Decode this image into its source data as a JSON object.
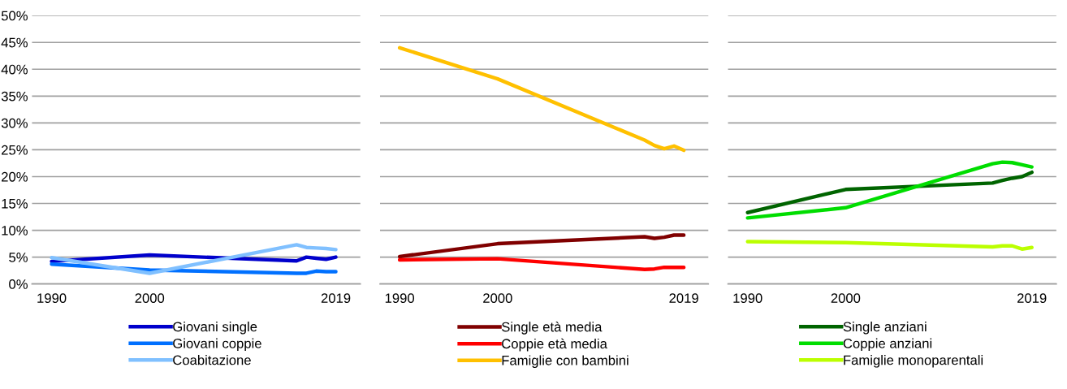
{
  "chart_data": [
    {
      "type": "line",
      "x": [
        1990,
        2000,
        2015,
        2016,
        2017,
        2018,
        2019
      ],
      "xlim": [
        1988,
        2021.5
      ],
      "xticks": [
        1990,
        2000,
        2019
      ],
      "ylim": [
        0,
        50
      ],
      "yticks": [
        {
          "value": 0,
          "label": "0%"
        },
        {
          "value": 5,
          "label": "5%"
        },
        {
          "value": 10,
          "label": "10%"
        },
        {
          "value": 15,
          "label": "15%"
        },
        {
          "value": 20,
          "label": "20%"
        },
        {
          "value": 25,
          "label": "25%"
        },
        {
          "value": 30,
          "label": "30%"
        },
        {
          "value": 35,
          "label": "35%"
        },
        {
          "value": 40,
          "label": "40%"
        },
        {
          "value": 45,
          "label": "45%"
        },
        {
          "value": 50,
          "label": "50%"
        }
      ],
      "grid": "y",
      "legend": "bottom",
      "marker": "none",
      "line_style": "solid",
      "series": [
        {
          "name": "Giovani single",
          "color": "#0000cc",
          "values": [
            4.2,
            5.4,
            4.3,
            5.0,
            4.8,
            4.6,
            5.0
          ]
        },
        {
          "name": "Giovani coppie",
          "color": "#0070ff",
          "values": [
            3.7,
            2.6,
            2.0,
            2.0,
            2.4,
            2.3,
            2.3
          ]
        },
        {
          "name": "Coabitazione",
          "color": "#80c0ff",
          "values": [
            4.9,
            2.0,
            7.3,
            6.8,
            6.7,
            6.6,
            6.4
          ]
        }
      ]
    },
    {
      "type": "line",
      "x": [
        1990,
        2000,
        2015,
        2016,
        2017,
        2018,
        2019
      ],
      "xlim": [
        1988,
        2021.5
      ],
      "xticks": [
        1990,
        2000,
        2019
      ],
      "ylim": [
        0,
        50
      ],
      "yticks": [
        0,
        5,
        10,
        15,
        20,
        25,
        30,
        35,
        40,
        45,
        50
      ],
      "tick_labels": "x",
      "grid": "y",
      "legend": "bottom",
      "marker": "none",
      "line_style": "solid",
      "series": [
        {
          "name": "Single età media",
          "color": "#800000",
          "values": [
            5.1,
            7.5,
            8.8,
            8.5,
            8.7,
            9.1,
            9.1
          ]
        },
        {
          "name": "Coppie età media",
          "color": "#ff0000",
          "values": [
            4.5,
            4.7,
            2.7,
            2.8,
            3.1,
            3.1,
            3.1
          ]
        },
        {
          "name": "Famiglie con bambini",
          "color": "#ffc000",
          "values": [
            44.0,
            38.2,
            26.8,
            25.8,
            25.2,
            25.7,
            24.9
          ]
        }
      ]
    },
    {
      "type": "line",
      "x": [
        1990,
        2000,
        2015,
        2016,
        2017,
        2018,
        2019
      ],
      "xlim": [
        1988,
        2021.5
      ],
      "xticks": [
        1990,
        2000,
        2019
      ],
      "ylim": [
        0,
        50
      ],
      "yticks": [
        0,
        5,
        10,
        15,
        20,
        25,
        30,
        35,
        40,
        45,
        50
      ],
      "tick_labels": "x",
      "grid": "y",
      "legend": "bottom",
      "marker": "none",
      "line_style": "solid",
      "series": [
        {
          "name": "Single anziani",
          "color": "#006400",
          "values": [
            13.3,
            17.6,
            18.8,
            19.3,
            19.7,
            20.0,
            20.8
          ]
        },
        {
          "name": "Coppie anziani",
          "color": "#00dd00",
          "values": [
            12.3,
            14.2,
            22.4,
            22.7,
            22.6,
            22.2,
            21.8
          ]
        },
        {
          "name": "Famiglie monoparentali",
          "color": "#bbff00",
          "values": [
            7.9,
            7.7,
            6.9,
            7.1,
            7.1,
            6.5,
            6.8
          ]
        }
      ]
    }
  ]
}
